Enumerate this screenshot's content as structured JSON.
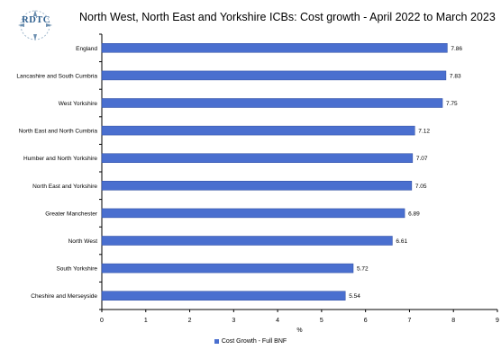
{
  "logo_text": "RDTC",
  "chart_data": {
    "type": "bar",
    "orientation": "horizontal",
    "title": "North West, North East and Yorkshire ICBs: Cost growth - April 2022 to March 2023",
    "categories": [
      "England",
      "Lancashire and South Cumbria",
      "West Yorkshire",
      "North East and North Cumbria",
      "Humber and North Yorkshire",
      "North East and Yorkshire",
      "Greater Manchester",
      "North West",
      "South Yorkshire",
      "Cheshire and Merseyside"
    ],
    "series": [
      {
        "name": "Cost Growth - Full BNF",
        "values": [
          7.86,
          7.83,
          7.75,
          7.12,
          7.07,
          7.05,
          6.89,
          6.61,
          5.72,
          5.54
        ]
      }
    ],
    "data_labels": [
      "7.86",
      "7.83",
      "7.75",
      "7.12",
      "7.07",
      "7.05",
      "6.89",
      "6.61",
      "5.72",
      "5.54"
    ],
    "xlabel": "%",
    "ylabel": "",
    "xlim": [
      0,
      9
    ],
    "xticks": [
      "0",
      "1",
      "2",
      "3",
      "4",
      "5",
      "6",
      "7",
      "8",
      "9"
    ],
    "grid": false,
    "legend_position": "bottom",
    "colors": {
      "bar": "#4a6fcf",
      "bar_edge": "#2c4a9e",
      "axis": "#000000"
    }
  }
}
